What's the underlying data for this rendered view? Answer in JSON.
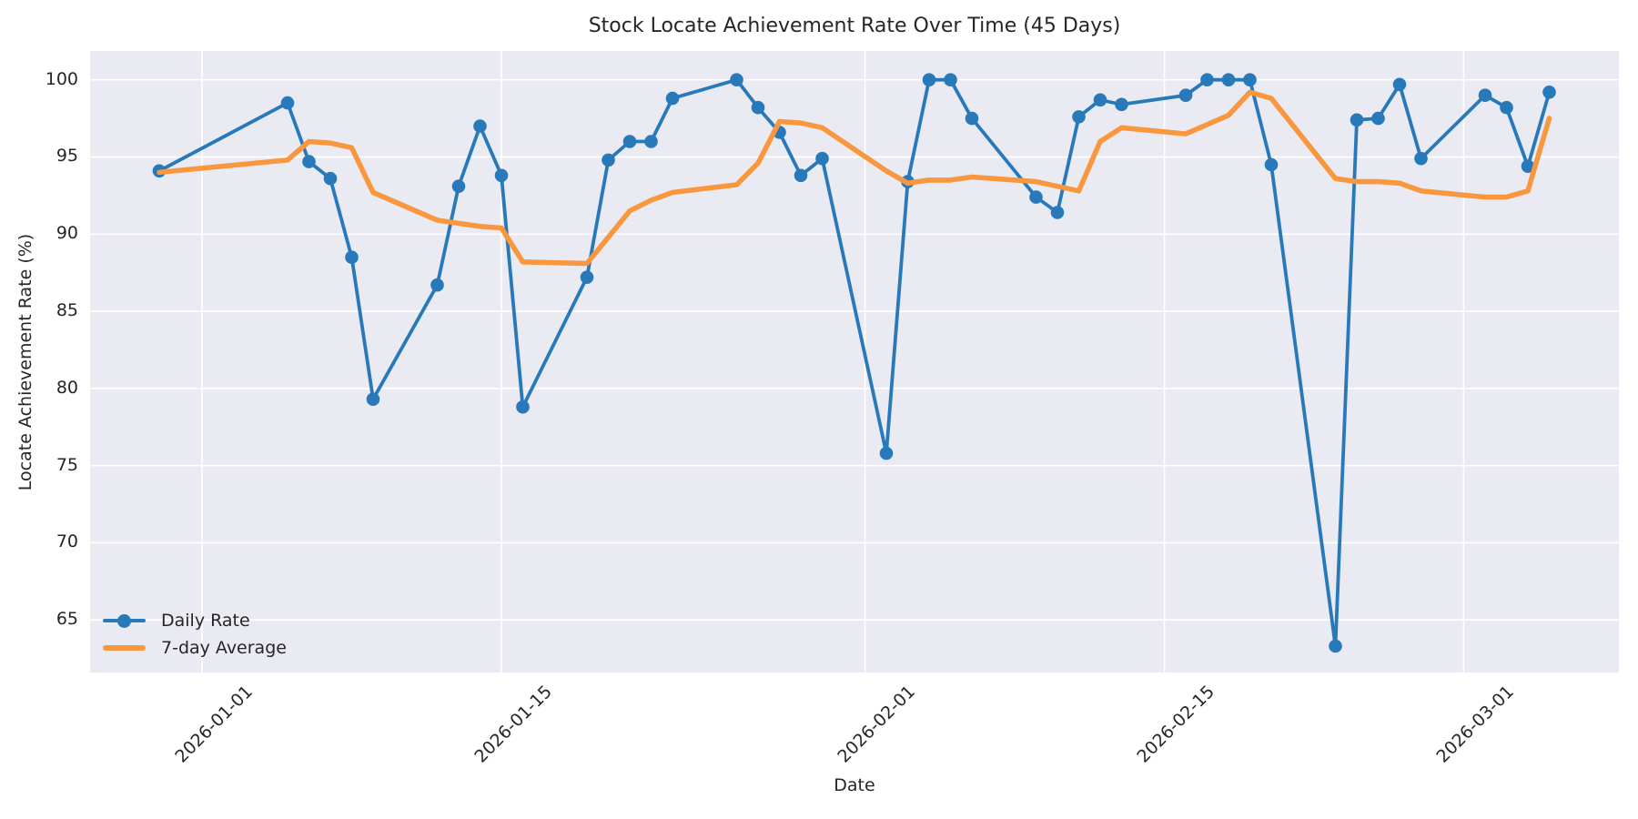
{
  "title": "Stock Locate Achievement Rate Over Time (45 Days)",
  "x_axis": {
    "label": "Date",
    "ticks": [
      "2026-01-01",
      "2026-01-15",
      "2026-02-01",
      "2026-02-15",
      "2026-03-01"
    ]
  },
  "y_axis": {
    "label": "Locate Achievement Rate (%)",
    "ticks": [
      65,
      70,
      75,
      80,
      85,
      90,
      95,
      100
    ]
  },
  "legend": {
    "position": "lower left",
    "items": [
      {
        "label": "Daily Rate",
        "color": "#2879b9",
        "marker": "circle"
      },
      {
        "label": "7-day Average",
        "color": "#f9973f",
        "marker": "line"
      }
    ]
  },
  "colors": {
    "daily": "#2879b9",
    "average": "#f9973f",
    "plot_background": "#eaeaf2",
    "grid": "#ffffff",
    "text": "#262626",
    "figure_background": "#ffffff"
  },
  "chart_data": {
    "type": "line",
    "title": "Stock Locate Achievement Rate Over Time (45 Days)",
    "xlabel": "Date",
    "ylabel": "Locate Achievement Rate (%)",
    "grid": true,
    "legend_position": "lower left",
    "ylim": [
      61.6,
      101.9
    ],
    "x": [
      "2025-12-30",
      "2026-01-05",
      "2026-01-06",
      "2026-01-07",
      "2026-01-08",
      "2026-01-09",
      "2026-01-12",
      "2026-01-13",
      "2026-01-14",
      "2026-01-15",
      "2026-01-16",
      "2026-01-19",
      "2026-01-20",
      "2026-01-21",
      "2026-01-22",
      "2026-01-23",
      "2026-01-26",
      "2026-01-27",
      "2026-01-28",
      "2026-01-29",
      "2026-01-30",
      "2026-02-02",
      "2026-02-03",
      "2026-02-04",
      "2026-02-05",
      "2026-02-06",
      "2026-02-09",
      "2026-02-10",
      "2026-02-11",
      "2026-02-12",
      "2026-02-13",
      "2026-02-16",
      "2026-02-17",
      "2026-02-18",
      "2026-02-19",
      "2026-02-20",
      "2026-02-23",
      "2026-02-24",
      "2026-02-25",
      "2026-02-26",
      "2026-02-27",
      "2026-03-02",
      "2026-03-03",
      "2026-03-04",
      "2026-03-05"
    ],
    "series": [
      {
        "name": "Daily Rate",
        "color": "#2879b9",
        "marker": "circle",
        "values": [
          94.1,
          98.5,
          94.7,
          93.6,
          88.5,
          79.3,
          86.7,
          93.1,
          97.0,
          93.8,
          78.8,
          87.2,
          94.8,
          96.0,
          96.0,
          98.8,
          100.0,
          98.2,
          96.6,
          93.8,
          94.9,
          75.8,
          93.4,
          100.0,
          100.0,
          97.5,
          92.4,
          91.4,
          97.6,
          98.7,
          98.4,
          99.0,
          100.0,
          100.0,
          100.0,
          94.5,
          63.3,
          97.4,
          97.5,
          99.7,
          94.9,
          99.0,
          98.2,
          94.4,
          99.2
        ]
      },
      {
        "name": "7-day Average",
        "color": "#f9973f",
        "marker": "none",
        "values": [
          94.0,
          94.8,
          96.0,
          95.9,
          95.6,
          92.7,
          90.9,
          90.7,
          90.5,
          90.4,
          88.2,
          88.1,
          89.8,
          91.5,
          92.2,
          92.7,
          93.2,
          94.6,
          97.3,
          97.2,
          96.9,
          94.1,
          93.3,
          93.5,
          93.5,
          93.7,
          93.4,
          93.1,
          92.8,
          96.0,
          96.9,
          96.5,
          97.1,
          97.7,
          99.2,
          98.8,
          93.6,
          93.4,
          93.4,
          93.3,
          92.8,
          92.4,
          92.4,
          92.8,
          97.5
        ]
      }
    ]
  }
}
